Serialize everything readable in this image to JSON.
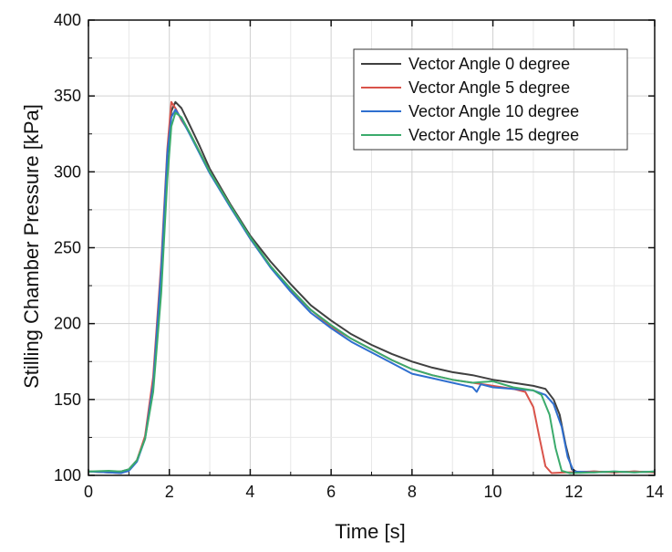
{
  "chart_data": {
    "type": "line",
    "title": "",
    "xlabel": "Time [s]",
    "ylabel": "Stilling Chamber Pressure [kPa]",
    "xlim": [
      0,
      14
    ],
    "ylim": [
      100,
      400
    ],
    "x_ticks": [
      0,
      2,
      4,
      6,
      8,
      10,
      12,
      14
    ],
    "y_ticks": [
      100,
      150,
      200,
      250,
      300,
      350,
      400
    ],
    "x_tick_labels": [
      "0",
      "2",
      "4",
      "6",
      "8",
      "10",
      "12",
      "14"
    ],
    "y_tick_labels": [
      "100",
      "150",
      "200",
      "250",
      "300",
      "350",
      "400"
    ],
    "grid": true,
    "minor_grid": true,
    "legend_position": "top-right",
    "series": [
      {
        "name": "Vector Angle 0 degree",
        "color": "#404040",
        "points": [
          [
            0.0,
            102.5
          ],
          [
            0.5,
            102.0
          ],
          [
            0.8,
            102.5
          ],
          [
            1.0,
            104.0
          ],
          [
            1.2,
            110.0
          ],
          [
            1.4,
            125.0
          ],
          [
            1.6,
            160.0
          ],
          [
            1.8,
            230.0
          ],
          [
            1.95,
            310.0
          ],
          [
            2.05,
            340.0
          ],
          [
            2.15,
            346.0
          ],
          [
            2.3,
            342.0
          ],
          [
            2.5,
            331.0
          ],
          [
            2.75,
            317.0
          ],
          [
            3.0,
            302.0
          ],
          [
            3.5,
            279.0
          ],
          [
            4.0,
            258.0
          ],
          [
            4.5,
            241.0
          ],
          [
            5.0,
            226.0
          ],
          [
            5.5,
            212.0
          ],
          [
            6.0,
            202.0
          ],
          [
            6.5,
            193.0
          ],
          [
            7.0,
            186.0
          ],
          [
            7.5,
            180.0
          ],
          [
            8.0,
            175.0
          ],
          [
            8.5,
            171.0
          ],
          [
            9.0,
            168.0
          ],
          [
            9.5,
            166.0
          ],
          [
            10.0,
            163.0
          ],
          [
            10.5,
            161.0
          ],
          [
            11.0,
            159.0
          ],
          [
            11.3,
            157.0
          ],
          [
            11.5,
            150.0
          ],
          [
            11.65,
            140.0
          ],
          [
            11.8,
            120.0
          ],
          [
            11.95,
            104.0
          ],
          [
            12.1,
            102.0
          ],
          [
            12.5,
            102.5
          ],
          [
            13.0,
            102.0
          ],
          [
            13.5,
            102.5
          ],
          [
            14.0,
            102.0
          ]
        ]
      },
      {
        "name": "Vector Angle 5 degree",
        "color": "#d9534a",
        "points": [
          [
            0.0,
            102.5
          ],
          [
            0.5,
            102.0
          ],
          [
            0.8,
            101.5
          ],
          [
            1.0,
            103.5
          ],
          [
            1.2,
            110.0
          ],
          [
            1.4,
            126.0
          ],
          [
            1.6,
            165.0
          ],
          [
            1.8,
            240.0
          ],
          [
            1.95,
            315.0
          ],
          [
            2.05,
            346.0
          ],
          [
            2.15,
            342.0
          ],
          [
            2.3,
            334.0
          ],
          [
            2.5,
            326.0
          ],
          [
            2.75,
            313.0
          ],
          [
            3.0,
            300.0
          ],
          [
            3.5,
            278.0
          ],
          [
            4.0,
            256.0
          ],
          [
            4.5,
            238.0
          ],
          [
            5.0,
            222.0
          ],
          [
            5.5,
            209.0
          ],
          [
            6.0,
            198.0
          ],
          [
            6.5,
            190.0
          ],
          [
            7.0,
            183.0
          ],
          [
            7.5,
            176.0
          ],
          [
            8.0,
            170.0
          ],
          [
            8.5,
            166.0
          ],
          [
            9.0,
            163.0
          ],
          [
            9.5,
            161.0
          ],
          [
            10.0,
            159.0
          ],
          [
            10.5,
            157.0
          ],
          [
            10.8,
            155.0
          ],
          [
            11.0,
            145.0
          ],
          [
            11.15,
            125.0
          ],
          [
            11.3,
            106.0
          ],
          [
            11.45,
            101.5
          ],
          [
            11.8,
            102.0
          ],
          [
            12.5,
            102.5
          ],
          [
            13.0,
            102.0
          ],
          [
            13.5,
            102.5
          ],
          [
            14.0,
            102.0
          ]
        ]
      },
      {
        "name": "Vector Angle 10 degree",
        "color": "#2f6fcf",
        "points": [
          [
            0.0,
            102.5
          ],
          [
            0.5,
            102.0
          ],
          [
            0.8,
            101.5
          ],
          [
            1.0,
            103.0
          ],
          [
            1.2,
            109.0
          ],
          [
            1.4,
            124.0
          ],
          [
            1.6,
            160.0
          ],
          [
            1.8,
            235.0
          ],
          [
            1.95,
            312.0
          ],
          [
            2.05,
            336.0
          ],
          [
            2.15,
            341.0
          ],
          [
            2.3,
            335.0
          ],
          [
            2.5,
            325.0
          ],
          [
            2.75,
            312.0
          ],
          [
            3.0,
            299.0
          ],
          [
            3.5,
            277.0
          ],
          [
            4.0,
            256.0
          ],
          [
            4.5,
            237.0
          ],
          [
            5.0,
            221.0
          ],
          [
            5.5,
            207.0
          ],
          [
            6.0,
            197.0
          ],
          [
            6.5,
            188.0
          ],
          [
            7.0,
            181.0
          ],
          [
            7.5,
            174.0
          ],
          [
            8.0,
            167.0
          ],
          [
            8.5,
            164.0
          ],
          [
            9.0,
            161.0
          ],
          [
            9.5,
            158.0
          ],
          [
            9.6,
            155.0
          ],
          [
            9.7,
            160.0
          ],
          [
            10.0,
            158.0
          ],
          [
            10.5,
            157.0
          ],
          [
            11.0,
            156.0
          ],
          [
            11.3,
            153.0
          ],
          [
            11.5,
            147.0
          ],
          [
            11.7,
            132.0
          ],
          [
            11.85,
            112.0
          ],
          [
            12.0,
            102.5
          ],
          [
            12.5,
            102.0
          ],
          [
            13.0,
            102.5
          ],
          [
            13.5,
            102.0
          ],
          [
            14.0,
            102.5
          ]
        ]
      },
      {
        "name": "Vector Angle 15 degree",
        "color": "#3bab6c",
        "points": [
          [
            0.0,
            102.5
          ],
          [
            0.5,
            103.0
          ],
          [
            0.8,
            102.5
          ],
          [
            1.0,
            104.0
          ],
          [
            1.2,
            110.0
          ],
          [
            1.4,
            124.0
          ],
          [
            1.6,
            155.0
          ],
          [
            1.8,
            220.0
          ],
          [
            1.95,
            295.0
          ],
          [
            2.05,
            330.0
          ],
          [
            2.15,
            339.0
          ],
          [
            2.3,
            336.0
          ],
          [
            2.5,
            326.0
          ],
          [
            2.75,
            313.0
          ],
          [
            3.0,
            300.0
          ],
          [
            3.5,
            278.0
          ],
          [
            4.0,
            257.0
          ],
          [
            4.5,
            238.0
          ],
          [
            5.0,
            223.0
          ],
          [
            5.5,
            209.0
          ],
          [
            6.0,
            199.0
          ],
          [
            6.5,
            190.0
          ],
          [
            7.0,
            183.0
          ],
          [
            7.5,
            176.0
          ],
          [
            8.0,
            170.0
          ],
          [
            8.5,
            166.0
          ],
          [
            9.0,
            163.0
          ],
          [
            9.5,
            161.0
          ],
          [
            10.0,
            162.0
          ],
          [
            10.5,
            158.0
          ],
          [
            11.0,
            156.0
          ],
          [
            11.2,
            153.0
          ],
          [
            11.4,
            140.0
          ],
          [
            11.55,
            118.0
          ],
          [
            11.7,
            103.0
          ],
          [
            11.9,
            101.5
          ],
          [
            12.5,
            102.0
          ],
          [
            13.0,
            102.5
          ],
          [
            13.5,
            102.0
          ],
          [
            14.0,
            102.5
          ]
        ]
      }
    ]
  }
}
